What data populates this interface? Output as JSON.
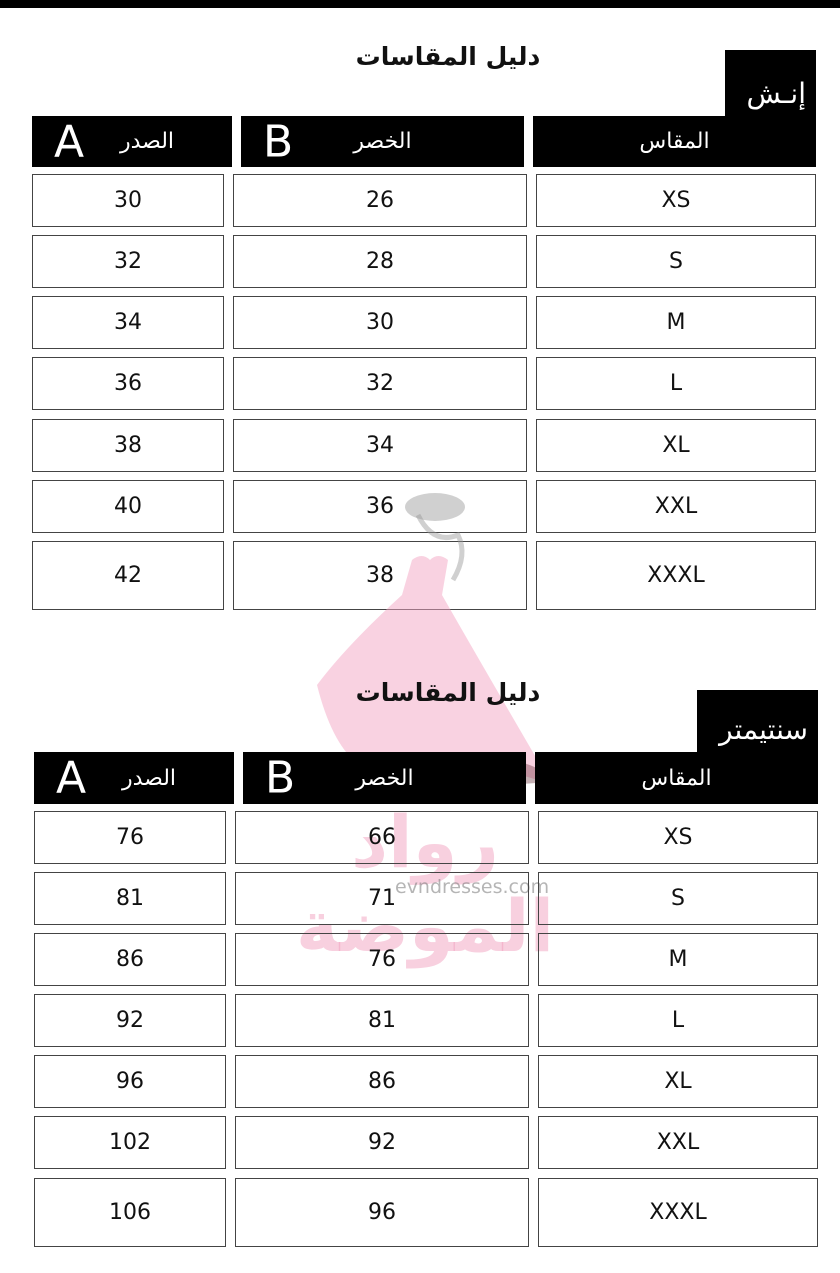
{
  "tables": [
    {
      "title": "دليل المقاسات",
      "unit": "إنـش",
      "headers": {
        "bust": "الصدر",
        "bust_letter": "A",
        "waist": "الخصر",
        "waist_letter": "B",
        "size": "المقاس"
      },
      "rows": [
        {
          "size": "XS",
          "waist": "26",
          "bust": "30"
        },
        {
          "size": "S",
          "waist": "28",
          "bust": "32"
        },
        {
          "size": "M",
          "waist": "30",
          "bust": "34"
        },
        {
          "size": "L",
          "waist": "32",
          "bust": "36"
        },
        {
          "size": "XL",
          "waist": "34",
          "bust": "38"
        },
        {
          "size": "XXL",
          "waist": "36",
          "bust": "40"
        },
        {
          "size": "XXXL",
          "waist": "38",
          "bust": "42"
        }
      ]
    },
    {
      "title": "دليل المقاسات",
      "unit": "سنتيمتر",
      "headers": {
        "bust": "الصدر",
        "bust_letter": "A",
        "waist": "الخصر",
        "waist_letter": "B",
        "size": "المقاس"
      },
      "rows": [
        {
          "size": "XS",
          "waist": "66",
          "bust": "76"
        },
        {
          "size": "S",
          "waist": "71",
          "bust": "81"
        },
        {
          "size": "M",
          "waist": "76",
          "bust": "86"
        },
        {
          "size": "L",
          "waist": "81",
          "bust": "92"
        },
        {
          "size": "XL",
          "waist": "86",
          "bust": "96"
        },
        {
          "size": "XXL",
          "waist": "92",
          "bust": "102"
        },
        {
          "size": "XXXL",
          "waist": "96",
          "bust": "106"
        }
      ]
    }
  ],
  "watermark": {
    "brand": "رواد الموضة",
    "url": "evndresses.com",
    "color": "#f3a6c4"
  }
}
